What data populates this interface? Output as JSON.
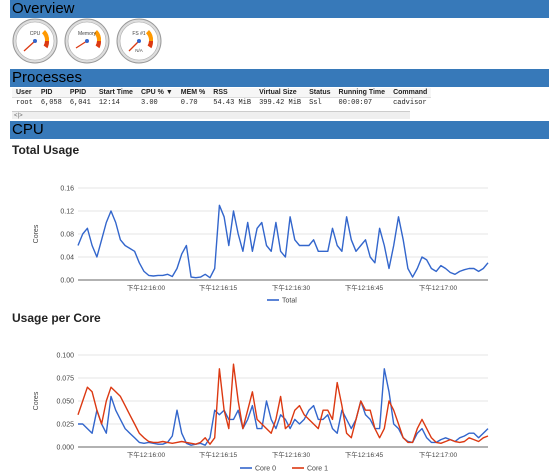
{
  "sections": {
    "overview": "Overview",
    "processes": "Processes",
    "cpu": "CPU"
  },
  "gauges": [
    {
      "label": "CPU",
      "value": 0.05
    },
    {
      "label": "Memory",
      "value": 0.3
    },
    {
      "label": "FS #1",
      "sublabel": "N/A",
      "value": 0
    }
  ],
  "processes": {
    "headers": [
      "User",
      "PID",
      "PPID",
      "Start Time",
      "CPU % ▼",
      "MEM %",
      "RSS",
      "Virtual Size",
      "Status",
      "Running Time",
      "Command"
    ],
    "rows": [
      [
        "root",
        "6,058",
        "6,041",
        "12:14",
        "3.00",
        "0.70",
        "54.43 MiB",
        "399.42 MiB",
        "Ssl",
        "00:00:07",
        "cadvisor"
      ]
    ],
    "scroll_label": "<|>"
  },
  "charts": {
    "total_title": "Total Usage",
    "per_core_title": "Usage per Core"
  },
  "colors": {
    "section_bar": "#3779b9",
    "total": "#3366cc",
    "core0": "#3366cc",
    "core1": "#dc3912"
  },
  "chart_data": [
    {
      "type": "line",
      "title": "Total Usage",
      "ylabel": "Cores",
      "ylim": [
        0,
        0.16
      ],
      "yticks": [
        "0.00",
        "0.04",
        "0.08",
        "0.12",
        "0.16"
      ],
      "xticks": [
        "下午12:16:00",
        "下午12:16:15",
        "下午12:16:30",
        "下午12:16:45",
        "下午12:17:00"
      ],
      "grid": true,
      "legend": "bottom",
      "series": [
        {
          "name": "Total",
          "values": [
            0.06,
            0.08,
            0.09,
            0.06,
            0.04,
            0.07,
            0.1,
            0.12,
            0.1,
            0.07,
            0.06,
            0.055,
            0.05,
            0.03,
            0.015,
            0.008,
            0.007,
            0.008,
            0.008,
            0.01,
            0.006,
            0.02,
            0.045,
            0.06,
            0.005,
            0.004,
            0.005,
            0.01,
            0.004,
            0.02,
            0.13,
            0.11,
            0.06,
            0.12,
            0.08,
            0.05,
            0.1,
            0.05,
            0.09,
            0.1,
            0.06,
            0.05,
            0.1,
            0.05,
            0.04,
            0.11,
            0.07,
            0.06,
            0.06,
            0.06,
            0.07,
            0.05,
            0.05,
            0.05,
            0.09,
            0.06,
            0.05,
            0.11,
            0.07,
            0.05,
            0.06,
            0.07,
            0.04,
            0.03,
            0.09,
            0.06,
            0.02,
            0.06,
            0.11,
            0.07,
            0.02,
            0.005,
            0.02,
            0.04,
            0.035,
            0.02,
            0.015,
            0.025,
            0.02,
            0.013,
            0.01,
            0.015,
            0.018,
            0.02,
            0.02,
            0.015,
            0.02,
            0.03
          ]
        }
      ]
    },
    {
      "type": "line",
      "title": "Usage per Core",
      "ylabel": "Cores",
      "ylim": [
        0,
        0.1
      ],
      "yticks": [
        "0.000",
        "0.025",
        "0.050",
        "0.075",
        "0.100"
      ],
      "xticks": [
        "下午12:16:00",
        "下午12:16:15",
        "下午12:16:30",
        "下午12:16:45",
        "下午12:17:00"
      ],
      "grid": true,
      "legend": "bottom",
      "series": [
        {
          "name": "Core 0",
          "values": [
            0.025,
            0.025,
            0.02,
            0.015,
            0.04,
            0.025,
            0.015,
            0.055,
            0.04,
            0.03,
            0.02,
            0.015,
            0.01,
            0.005,
            0.004,
            0.005,
            0.004,
            0.003,
            0.003,
            0.005,
            0.012,
            0.04,
            0.015,
            0.004,
            0.002,
            0.003,
            0.004,
            0.002,
            0.01,
            0.04,
            0.035,
            0.04,
            0.03,
            0.03,
            0.04,
            0.02,
            0.03,
            0.045,
            0.02,
            0.02,
            0.05,
            0.03,
            0.02,
            0.035,
            0.03,
            0.02,
            0.03,
            0.025,
            0.03,
            0.04,
            0.045,
            0.03,
            0.03,
            0.035,
            0.02,
            0.015,
            0.04,
            0.03,
            0.02,
            0.03,
            0.05,
            0.035,
            0.03,
            0.02,
            0.02,
            0.085,
            0.06,
            0.025,
            0.02,
            0.01,
            0.006,
            0.005,
            0.015,
            0.02,
            0.01,
            0.005,
            0.005,
            0.008,
            0.01,
            0.008,
            0.006,
            0.01,
            0.012,
            0.015,
            0.015,
            0.01,
            0.015,
            0.02
          ]
        },
        {
          "name": "Core 1",
          "values": [
            0.035,
            0.05,
            0.065,
            0.06,
            0.04,
            0.025,
            0.05,
            0.065,
            0.06,
            0.055,
            0.045,
            0.035,
            0.025,
            0.015,
            0.01,
            0.006,
            0.005,
            0.005,
            0.006,
            0.005,
            0.004,
            0.005,
            0.006,
            0.005,
            0.004,
            0.003,
            0.005,
            0.01,
            0.003,
            0.01,
            0.085,
            0.04,
            0.02,
            0.09,
            0.05,
            0.02,
            0.04,
            0.06,
            0.03,
            0.025,
            0.02,
            0.015,
            0.03,
            0.055,
            0.02,
            0.025,
            0.04,
            0.045,
            0.035,
            0.03,
            0.025,
            0.02,
            0.04,
            0.04,
            0.03,
            0.07,
            0.045,
            0.015,
            0.01,
            0.03,
            0.05,
            0.04,
            0.04,
            0.02,
            0.01,
            0.02,
            0.05,
            0.04,
            0.025,
            0.01,
            0.005,
            0.005,
            0.02,
            0.03,
            0.02,
            0.01,
            0.005,
            0.004,
            0.006,
            0.008,
            0.006,
            0.005,
            0.006,
            0.01,
            0.008,
            0.006,
            0.01,
            0.012
          ]
        }
      ]
    }
  ]
}
